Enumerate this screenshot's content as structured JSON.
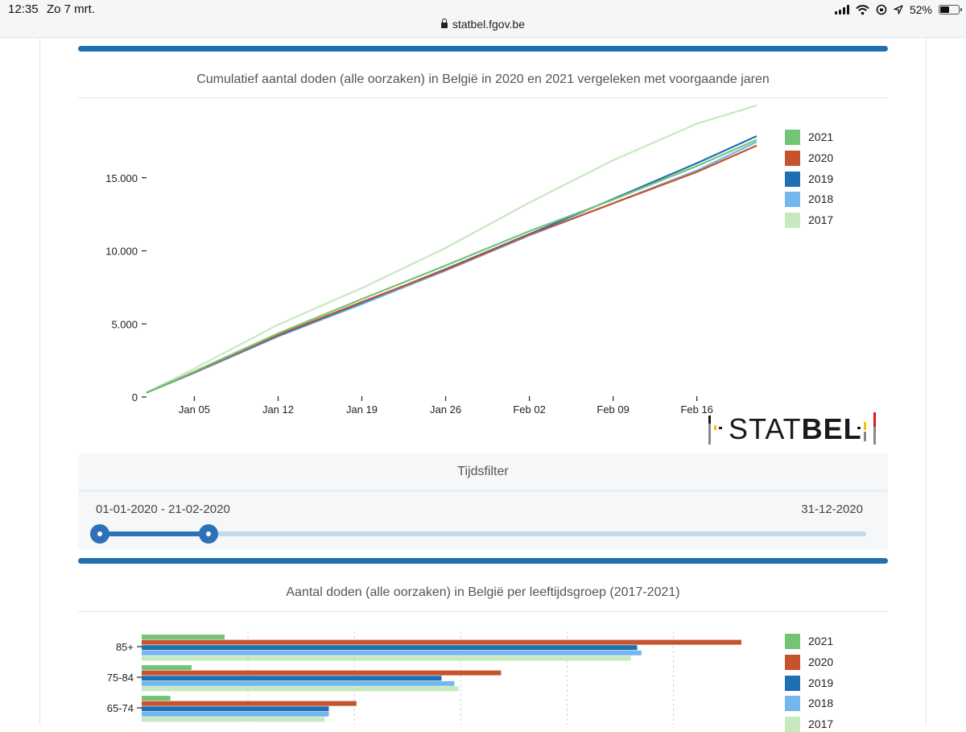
{
  "status_bar": {
    "time": "12:35",
    "date": "Zo 7 mrt.",
    "url": "statbel.fgov.be",
    "battery": "52%",
    "battery_level": 0.52
  },
  "line_chart_section": {
    "title": "Cumulatief aantal doden (alle oorzaken) in België in 2020 en 2021 vergeleken met voorgaande jaren"
  },
  "logo": {
    "prefix": "STAT",
    "suffix": "BEL"
  },
  "time_filter": {
    "title": "Tijdsfilter",
    "selected_range": "01-01-2020 - 21-02-2020",
    "end_date": "31-12-2020",
    "start_fraction": 0.0,
    "selected_end_fraction": 0.142
  },
  "bar_chart_section": {
    "title": "Aantal doden (alle oorzaken) in België per leeftijdsgroep (2017-2021)"
  },
  "colors": {
    "2021": "#74c476",
    "2020": "#c6532e",
    "2019": "#1f6fb2",
    "2018": "#74b7ec",
    "2017": "#c7e9c0"
  },
  "chart_data": [
    {
      "type": "line",
      "title": "Cumulatief aantal doden (alle oorzaken) in België in 2020 en 2021 vergeleken met voorgaande jaren",
      "x_ticks": [
        "Jan 05",
        "Jan 12",
        "Jan 19",
        "Jan 26",
        "Feb 02",
        "Feb 09",
        "Feb 16"
      ],
      "y_ticks": [
        "15.000",
        "10.000",
        "5.000",
        "0"
      ],
      "y_tick_values": [
        15000,
        10000,
        5000,
        0
      ],
      "ylim": [
        0,
        20000
      ],
      "xlim_days": [
        1,
        52
      ],
      "legend": [
        "2021",
        "2020",
        "2019",
        "2018",
        "2017"
      ],
      "series": [
        {
          "name": "2017",
          "days": [
            1,
            5,
            12,
            19,
            26,
            33,
            40,
            47,
            52
          ],
          "values": [
            300,
            1950,
            4950,
            7450,
            10200,
            13300,
            16200,
            18700,
            19950
          ]
        },
        {
          "name": "2018",
          "days": [
            1,
            5,
            12,
            19,
            26,
            33,
            40,
            47,
            52
          ],
          "values": [
            300,
            1650,
            4150,
            6350,
            8650,
            11050,
            13250,
            15500,
            17450
          ]
        },
        {
          "name": "2019",
          "days": [
            1,
            5,
            12,
            19,
            26,
            33,
            40,
            47,
            52
          ],
          "values": [
            300,
            1700,
            4200,
            6450,
            8750,
            11150,
            13550,
            16000,
            17850
          ]
        },
        {
          "name": "2020",
          "days": [
            1,
            5,
            12,
            19,
            26,
            33,
            40,
            47,
            52
          ],
          "values": [
            300,
            1700,
            4250,
            6500,
            8700,
            11100,
            13250,
            15400,
            17200
          ]
        },
        {
          "name": "2021",
          "days": [
            1,
            5,
            12,
            19,
            26,
            33,
            40,
            47,
            52
          ],
          "values": [
            300,
            1750,
            4350,
            6700,
            9000,
            11350,
            13500,
            15800,
            17600
          ]
        }
      ]
    },
    {
      "type": "bar",
      "orientation": "horizontal",
      "title": "Aantal doden (alle oorzaken) in België per leeftijdsgroep (2017-2021)",
      "categories": [
        "85+",
        "75-84",
        "65-74"
      ],
      "legend": [
        "2021",
        "2020",
        "2019",
        "2018",
        "2017"
      ],
      "xlim": [
        0,
        28000
      ],
      "gridlines": [
        5000,
        10000,
        15000,
        20000,
        25000
      ],
      "series": [
        {
          "name": "2021",
          "values": [
            3900,
            2350,
            1350
          ]
        },
        {
          "name": "2020",
          "values": [
            28200,
            16900,
            10100
          ]
        },
        {
          "name": "2019",
          "values": [
            23300,
            14100,
            8800
          ]
        },
        {
          "name": "2018",
          "values": [
            23500,
            14700,
            8800
          ]
        },
        {
          "name": "2017",
          "values": [
            23000,
            14900,
            8600
          ]
        }
      ]
    }
  ]
}
